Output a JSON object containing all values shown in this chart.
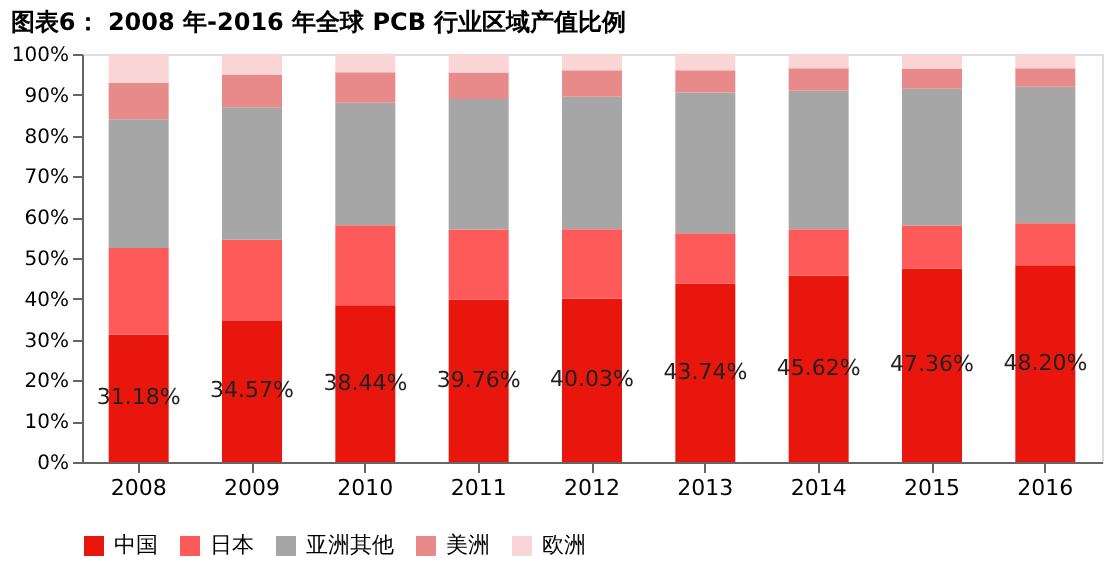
{
  "chart_data": {
    "type": "bar",
    "title": "图表6：  2008 年-2016 年全球 PCB 行业区域产值比例",
    "categories": [
      "2008",
      "2009",
      "2010",
      "2011",
      "2012",
      "2013",
      "2014",
      "2015",
      "2016"
    ],
    "stacked": true,
    "series": [
      {
        "name": "中国",
        "color": "#e8160c",
        "values": [
          31.18,
          34.57,
          38.44,
          39.76,
          40.03,
          43.74,
          45.62,
          47.36,
          48.2
        ],
        "value_labels": [
          "31.18%",
          "34.57%",
          "38.44%",
          "39.76%",
          "40.03%",
          "43.74%",
          "45.62%",
          "47.36%",
          "48.20%"
        ]
      },
      {
        "name": "日本",
        "color": "#ff5a5a",
        "values": [
          21.3,
          19.9,
          19.6,
          17.2,
          17.0,
          12.3,
          11.4,
          10.6,
          10.3
        ]
      },
      {
        "name": "亚洲其他",
        "color": "#a6a6a6",
        "values": [
          31.5,
          32.5,
          30,
          32,
          32.5,
          34.5,
          34,
          33.5,
          33.5
        ]
      },
      {
        "name": "美洲",
        "color": "#e98a8a",
        "values": [
          9,
          8,
          7.5,
          6.5,
          6.5,
          5.5,
          5.5,
          5,
          4.5
        ]
      },
      {
        "name": "欧洲",
        "color": "#f9d5d5",
        "values": [
          7,
          5,
          4.5,
          4.5,
          4,
          4,
          3.5,
          3.5,
          3.5
        ]
      }
    ],
    "ylim": [
      0,
      100
    ],
    "yticks": [
      {
        "value": 0,
        "label": "0%"
      },
      {
        "value": 10,
        "label": "10%"
      },
      {
        "value": 20,
        "label": "20%"
      },
      {
        "value": 30,
        "label": "30%"
      },
      {
        "value": 40,
        "label": "40%"
      },
      {
        "value": 50,
        "label": "50%"
      },
      {
        "value": 60,
        "label": "60%"
      },
      {
        "value": 70,
        "label": "70%"
      },
      {
        "value": 80,
        "label": "80%"
      },
      {
        "value": 90,
        "label": "90%"
      },
      {
        "value": 100,
        "label": "100%"
      }
    ],
    "grid": false,
    "legend": "bottom"
  }
}
